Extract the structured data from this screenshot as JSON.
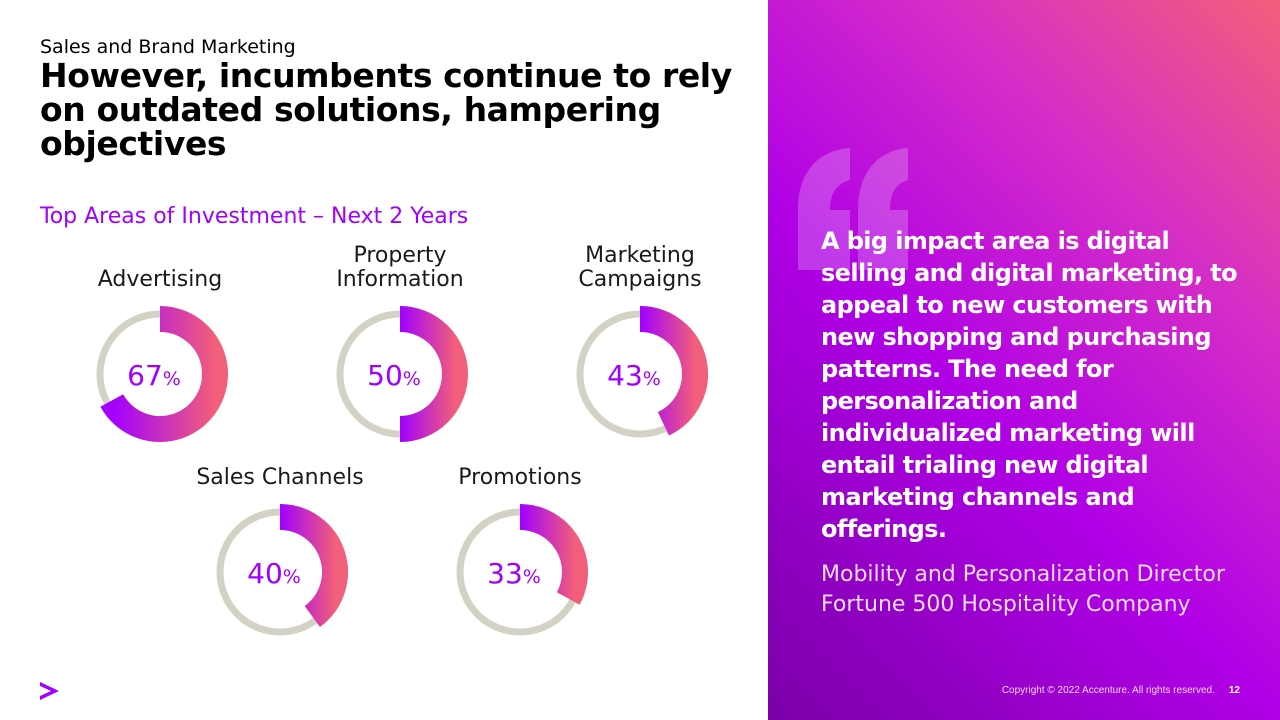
{
  "header": {
    "kicker": "Sales and Brand Marketing",
    "headline": "However, incumbents continue to rely on outdated solutions, hampering objectives"
  },
  "section_title": "Top Areas of Investment – Next 2 Years",
  "chart_data": {
    "type": "donut",
    "title": "Top Areas of Investment – Next 2 Years",
    "unit": "%",
    "categories": [
      "Advertising",
      "Property Information",
      "Marketing Campaigns",
      "Sales Channels",
      "Promotions"
    ],
    "values": [
      67,
      50,
      43,
      40,
      33
    ],
    "ylim": [
      0,
      100
    ]
  },
  "quote": {
    "text": "A big impact area is digital selling and digital marketing, to appeal to new customers with new shopping and purchasing patterns. The need for personalization and individualized marketing will entail trialing new digital marketing channels and offerings.",
    "attribution_line1": "Mobility and Personalization Director",
    "attribution_line2": "Fortune 500 Hospitality Company"
  },
  "footer": {
    "copyright": "Copyright © 2022 Accenture. All rights reserved.",
    "page_number": "12"
  },
  "colors": {
    "accent": "#a100ff",
    "donut_track": "#d4d2c4",
    "donut_start": "#a100ff",
    "donut_end": "#f25f7a"
  },
  "icons": {
    "logo": "accenture-greater-than-icon",
    "quote": "open-quote-icon"
  }
}
